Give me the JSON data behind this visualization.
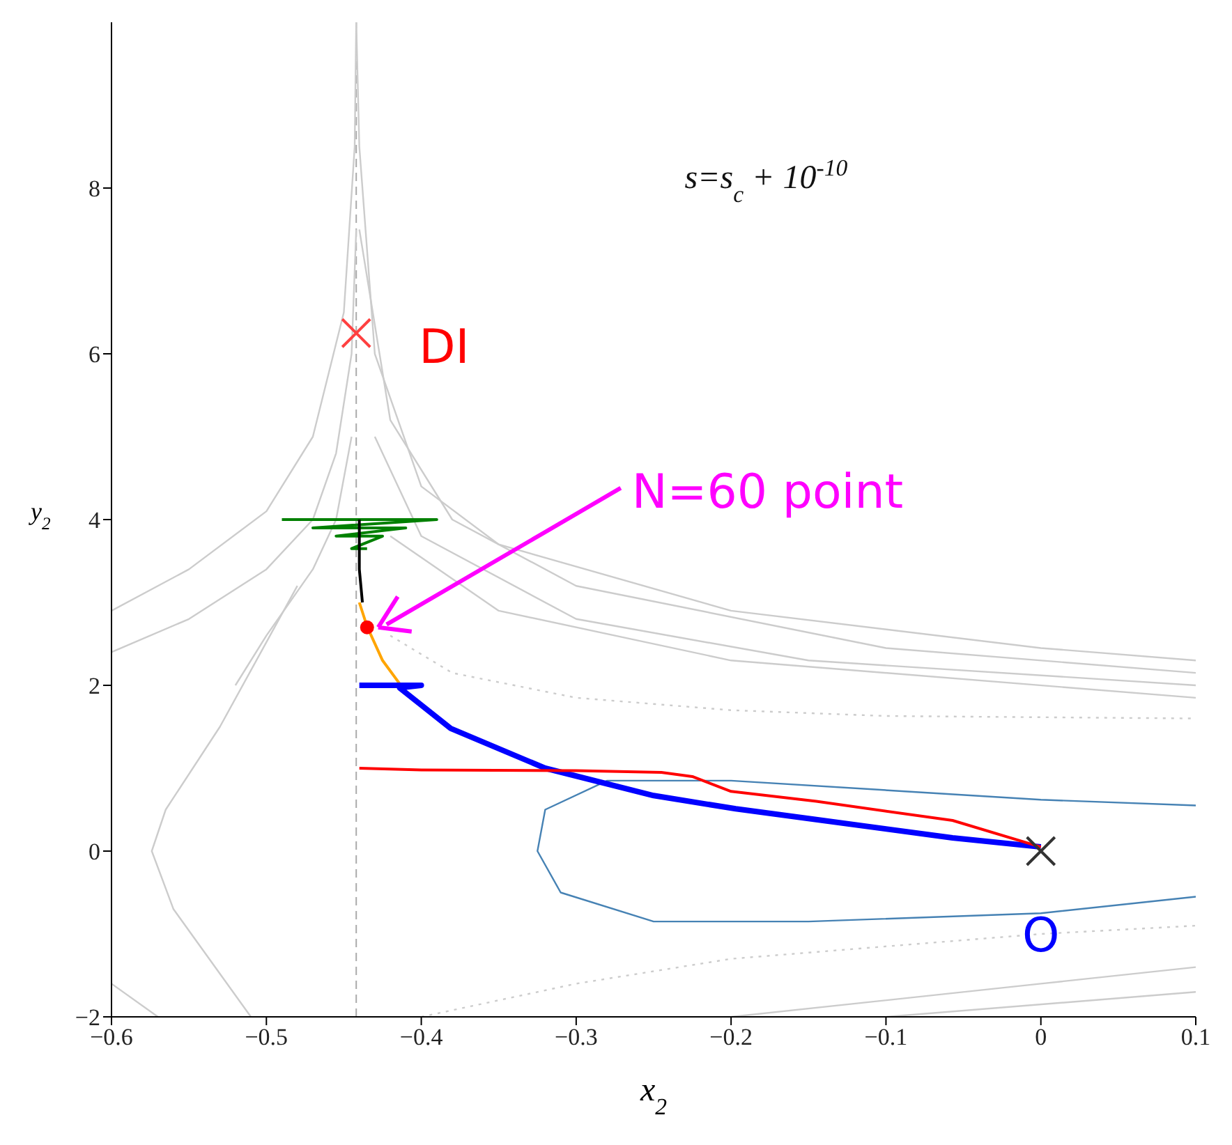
{
  "chart_data": {
    "type": "line",
    "xlabel": "x$_{2}$",
    "ylabel": "y$_{2}$",
    "xlim": [
      -0.6,
      0.1
    ],
    "ylim": [
      -2,
      10
    ],
    "xticks": [
      -0.6,
      -0.5,
      -0.4,
      -0.3,
      -0.2,
      -0.1,
      0,
      0.1
    ],
    "yticks": [
      -2,
      0,
      2,
      4,
      6,
      8
    ],
    "ref_lines": [
      {
        "axis": "x",
        "value": -0.442,
        "color": "#aaaaaa",
        "line_style": "dashed"
      }
    ],
    "annotations": [
      "s=s$_{c}$ + 10$^{-10}$",
      "N=60 point",
      {
        "text": "DI",
        "x": -0.442,
        "y": 6.25
      },
      {
        "text": "O",
        "x": 0,
        "y": -0.75
      }
    ],
    "series": [
      {
        "color": "#cccccc",
        "x": [
          -0.6,
          -0.55,
          -0.5,
          -0.47,
          -0.45,
          -0.443,
          -0.442
        ],
        "values": [
          2.9,
          3.4,
          4.1,
          5.0,
          6.5,
          8.5,
          10
        ]
      },
      {
        "color": "#cccccc",
        "x": [
          -0.6,
          -0.55,
          -0.5,
          -0.47,
          -0.455,
          -0.445,
          -0.442
        ],
        "values": [
          2.4,
          2.8,
          3.4,
          4.0,
          4.8,
          6.0,
          7.5
        ]
      },
      {
        "color": "#cccccc",
        "x": [
          -0.52,
          -0.5,
          -0.47,
          -0.455,
          -0.445
        ],
        "values": [
          2.0,
          2.6,
          3.4,
          4.0,
          5.0
        ]
      },
      {
        "color": "#cccccc",
        "x": [
          -0.442,
          -0.44,
          -0.43,
          -0.4,
          -0.35,
          -0.2,
          0,
          0.1
        ],
        "values": [
          10,
          8.5,
          6.0,
          4.4,
          3.7,
          2.9,
          2.45,
          2.3
        ]
      },
      {
        "color": "#cccccc",
        "x": [
          -0.44,
          -0.42,
          -0.38,
          -0.3,
          -0.1,
          0.1
        ],
        "values": [
          7.5,
          5.2,
          4.0,
          3.2,
          2.45,
          2.15
        ]
      },
      {
        "color": "#cccccc",
        "x": [
          -0.43,
          -0.4,
          -0.3,
          -0.15,
          0.1
        ],
        "values": [
          5.0,
          3.8,
          2.8,
          2.3,
          2.0
        ]
      },
      {
        "color": "#cccccc",
        "x": [
          -0.42,
          -0.35,
          -0.2,
          0.1
        ],
        "values": [
          3.8,
          2.9,
          2.3,
          1.85
        ]
      },
      {
        "color": "#cccccc",
        "line_style": "dotted",
        "x": [
          -0.42,
          -0.38,
          -0.3,
          -0.2,
          -0.1,
          0.1
        ],
        "values": [
          2.6,
          2.15,
          1.85,
          1.7,
          1.63,
          1.6
        ]
      },
      {
        "color": "#cccccc",
        "x": [
          -0.48,
          -0.53,
          -0.565,
          -0.574,
          -0.56,
          -0.51
        ],
        "values": [
          3.2,
          1.5,
          0.5,
          0,
          -0.7,
          -2.0
        ]
      },
      {
        "color": "#cccccc",
        "x": [
          -0.6,
          -0.57
        ],
        "values": [
          -1.6,
          -2.0
        ]
      },
      {
        "color": "#cccccc",
        "line_style": "dotted",
        "x": [
          -0.4,
          -0.3,
          -0.2,
          0,
          0.1
        ],
        "values": [
          -2.0,
          -1.6,
          -1.3,
          -1.0,
          -0.9
        ]
      },
      {
        "color": "#cccccc",
        "x": [
          -0.2,
          0,
          0.1
        ],
        "values": [
          -2.0,
          -1.6,
          -1.4
        ]
      },
      {
        "color": "#cccccc",
        "x": [
          -0.1,
          0.1
        ],
        "values": [
          -2.0,
          -1.7
        ]
      },
      {
        "color": "#4682b4",
        "x": [
          0.1,
          0,
          -0.2,
          -0.28,
          -0.32,
          -0.325,
          -0.31,
          -0.25,
          -0.15,
          0,
          0.1
        ],
        "values": [
          0.55,
          0.62,
          0.85,
          0.85,
          0.5,
          0,
          -0.5,
          -0.85,
          -0.85,
          -0.75,
          -0.55
        ]
      },
      {
        "color": "#008000",
        "x": [
          -0.49,
          -0.39,
          -0.47,
          -0.41,
          -0.455,
          -0.425,
          -0.445,
          -0.435
        ],
        "values": [
          4.0,
          4.0,
          3.9,
          3.9,
          3.8,
          3.8,
          3.65,
          3.65
        ]
      },
      {
        "color": "#000000",
        "x": [
          -0.44,
          -0.44,
          -0.438
        ],
        "values": [
          4.0,
          3.4,
          3.0
        ]
      },
      {
        "color": "#ffa500",
        "x": [
          -0.44,
          -0.435,
          -0.425,
          -0.414
        ],
        "values": [
          3.0,
          2.71,
          2.3,
          2.02
        ]
      },
      {
        "color": "#0000ff",
        "x": [
          -0.44,
          -0.4,
          -0.414,
          -0.381,
          -0.32,
          -0.25,
          -0.197,
          -0.145,
          -0.057,
          0
        ],
        "values": [
          2.0,
          2.0,
          1.97,
          1.48,
          1.0,
          0.67,
          0.51,
          0.38,
          0.16,
          0.05
        ]
      },
      {
        "color": "#ff0000",
        "x": [
          -0.44,
          -0.4,
          -0.3,
          -0.245,
          -0.225,
          -0.2,
          -0.145,
          -0.057,
          0
        ],
        "values": [
          1.0,
          0.98,
          0.97,
          0.95,
          0.9,
          0.72,
          0.6,
          0.37,
          0.05
        ]
      },
      {
        "type": "scatter",
        "color": "#ff0000",
        "marker": "circle",
        "x": [
          -0.435
        ],
        "values": [
          2.7
        ]
      },
      {
        "type": "scatter",
        "color": "#ff4040",
        "marker": "cross",
        "x": [
          -0.442
        ],
        "values": [
          6.25
        ]
      },
      {
        "type": "scatter",
        "color": "#333333",
        "marker": "cross",
        "x": [
          0
        ],
        "values": [
          0
        ]
      }
    ]
  }
}
